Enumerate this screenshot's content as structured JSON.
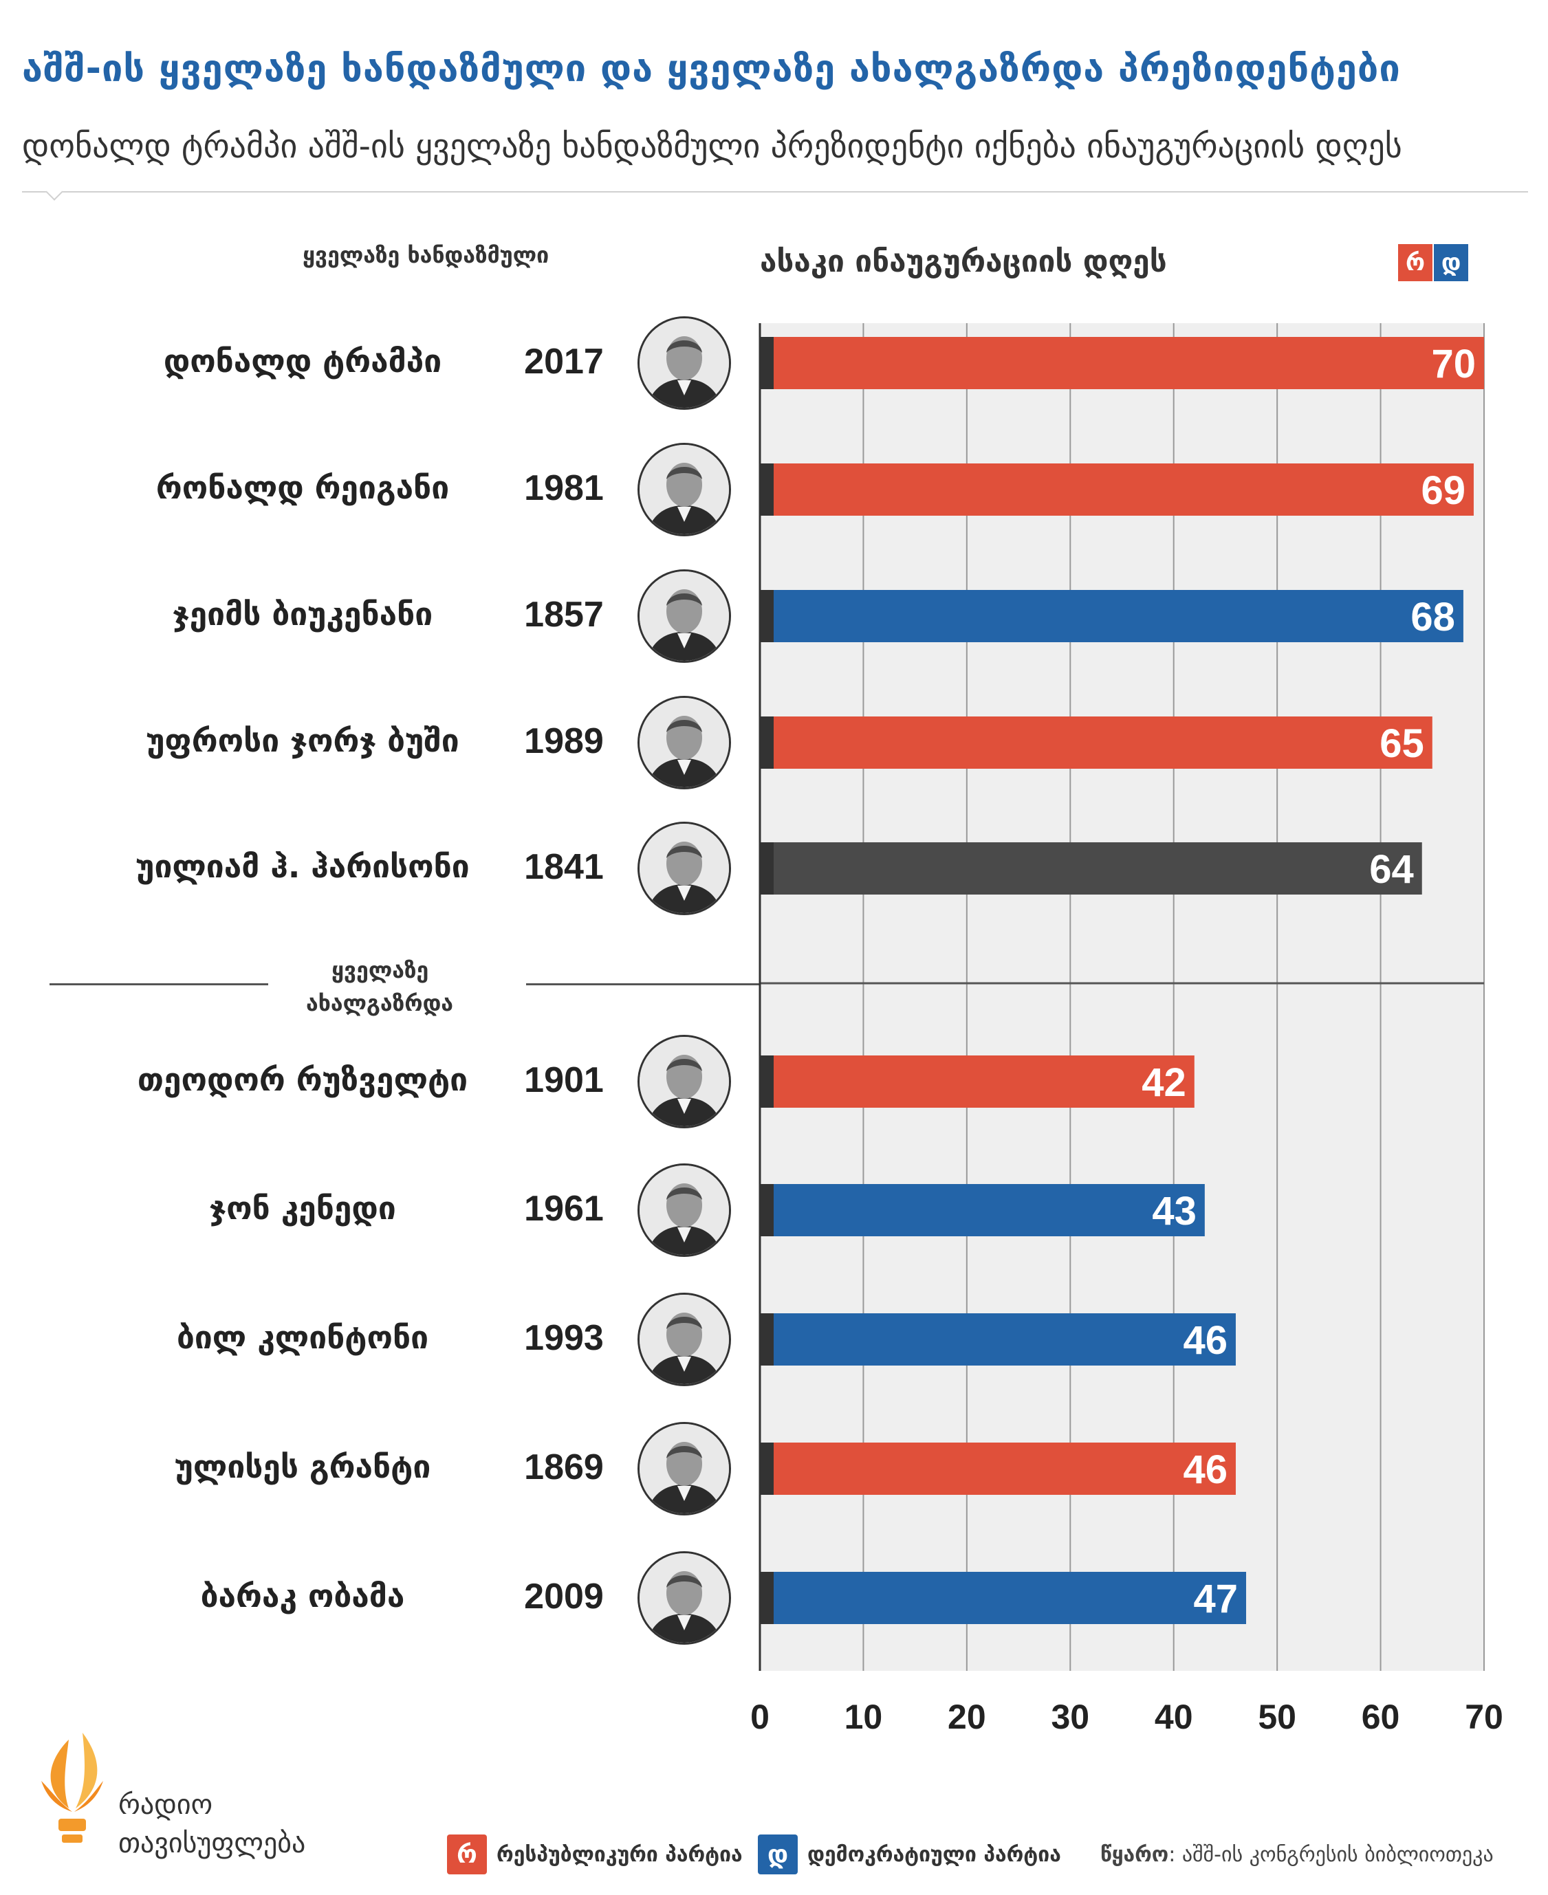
{
  "header": {
    "title": "აშშ-ის ყველაზე ხანდაზმული და ყველაზე ახალგაზრდა პრეზიდენტები",
    "subtitle": "დონალდ ტრამპი აშშ-ის ყველაზე ხანდაზმული პრეზიდენტი იქნება ინაუგურაციის დღეს"
  },
  "sections": {
    "oldest_label": "ყველაზე ხანდაზმული",
    "youngest_label_line1": "ყველაზე",
    "youngest_label_line2": "ახალგაზრდა"
  },
  "legend": {
    "republican_letter": "რ",
    "democrat_letter": "დ",
    "republican_label": "რესპუბლიკური პარტია",
    "democrat_label": "დემოკრატიული პარტია"
  },
  "colors": {
    "republican": "#e0503a",
    "democrat": "#2364a8",
    "other": "#4a4a4a",
    "grid": "#999999",
    "plot_bg": "#efefef"
  },
  "chart_data": {
    "type": "bar",
    "orientation": "horizontal",
    "xlabel": "ასაკი ინაუგურაციის დღეს",
    "xlim": [
      0,
      70
    ],
    "xticks": [
      0,
      10,
      20,
      30,
      40,
      50,
      60,
      70
    ],
    "grid": true,
    "legend_position": "top-right",
    "rows": [
      {
        "name": "დონალდ ტრამპი",
        "year": "2017",
        "age": 70,
        "party": "republican",
        "photo": "trump-photo"
      },
      {
        "name": "რონალდ რეიგანი",
        "year": "1981",
        "age": 69,
        "party": "republican",
        "photo": "reagan-photo"
      },
      {
        "name": "ჯეიმს ბიუკენანი",
        "year": "1857",
        "age": 68,
        "party": "democrat",
        "photo": "buchanan-photo"
      },
      {
        "name": "უფროსი ჯორჯ ბუში",
        "year": "1989",
        "age": 65,
        "party": "republican",
        "photo": "bush-photo"
      },
      {
        "name": "უილიამ ჰ. ჰარისონი",
        "year": "1841",
        "age": 64,
        "party": "other",
        "photo": "harrison-photo"
      },
      {
        "name": "თეოდორ რუზველტი",
        "year": "1901",
        "age": 42,
        "party": "republican",
        "photo": "roosevelt-photo"
      },
      {
        "name": "ჯონ კენედი",
        "year": "1961",
        "age": 43,
        "party": "democrat",
        "photo": "kennedy-photo"
      },
      {
        "name": "ბილ კლინტონი",
        "year": "1993",
        "age": 46,
        "party": "democrat",
        "photo": "clinton-photo"
      },
      {
        "name": "ულისეს გრანტი",
        "year": "1869",
        "age": 46,
        "party": "republican",
        "photo": "grant-photo"
      },
      {
        "name": "ბარაკ ობამა",
        "year": "2009",
        "age": 47,
        "party": "democrat",
        "photo": "obama-photo"
      }
    ]
  },
  "footer": {
    "logo_line1": "რადიო",
    "logo_line2": "თავისუფლება",
    "source_label": "წყარო",
    "source_text": ": აშშ-ის კონგრესის ბიბლიოთეკა"
  }
}
